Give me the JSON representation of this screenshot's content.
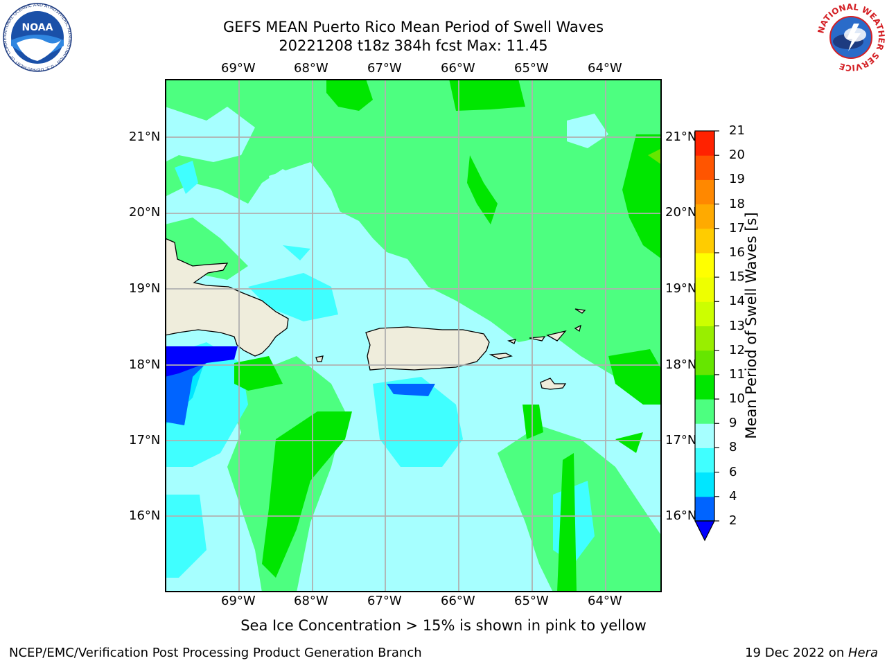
{
  "title": {
    "line1": "GEFS MEAN Puerto Rico Mean Period of Swell Waves",
    "line2": "20221208 t18z 384h fcst   Max: 11.45"
  },
  "axes": {
    "lon_labels": [
      "69°W",
      "68°W",
      "67°W",
      "66°W",
      "65°W",
      "64°W"
    ],
    "lat_labels": [
      "21°N",
      "20°N",
      "19°N",
      "18°N",
      "17°N",
      "16°N"
    ]
  },
  "colorbar": {
    "label": "Mean Period of Swell Waves [s]",
    "ticks": [
      "2",
      "4",
      "6",
      "8",
      "9",
      "10",
      "11",
      "12",
      "13",
      "14",
      "15",
      "16",
      "17",
      "18",
      "19",
      "20",
      "21"
    ],
    "colors": [
      "#0064ff",
      "#00e6ff",
      "#40ffff",
      "#a6ffff",
      "#4dff80",
      "#00e600",
      "#66e600",
      "#99ee00",
      "#ccff00",
      "#eeff00",
      "#ffff00",
      "#ffcc00",
      "#ffaa00",
      "#ff8800",
      "#ff5500",
      "#ff2200"
    ],
    "under_color": "#0000ff"
  },
  "note": "Sea Ice Concentration > 15% is shown in pink to yellow",
  "footer": {
    "left": "NCEP/EMC/Verification Post Processing Product Generation Branch",
    "date": "19 Dec 2022 on ",
    "host": "Hera"
  },
  "logos": {
    "noaa": "NOAA",
    "noaa_ring": "NATIONAL OCEANIC AND ATMOSPHERIC ADMINISTRATION · U.S. DEPARTMENT OF COMMERCE",
    "nws_ring": "NATIONAL WEATHER SERVICE"
  },
  "colors": {
    "land": "#efeddc",
    "sea_base": "#a6ffff",
    "grid": "#b0b0b0"
  }
}
